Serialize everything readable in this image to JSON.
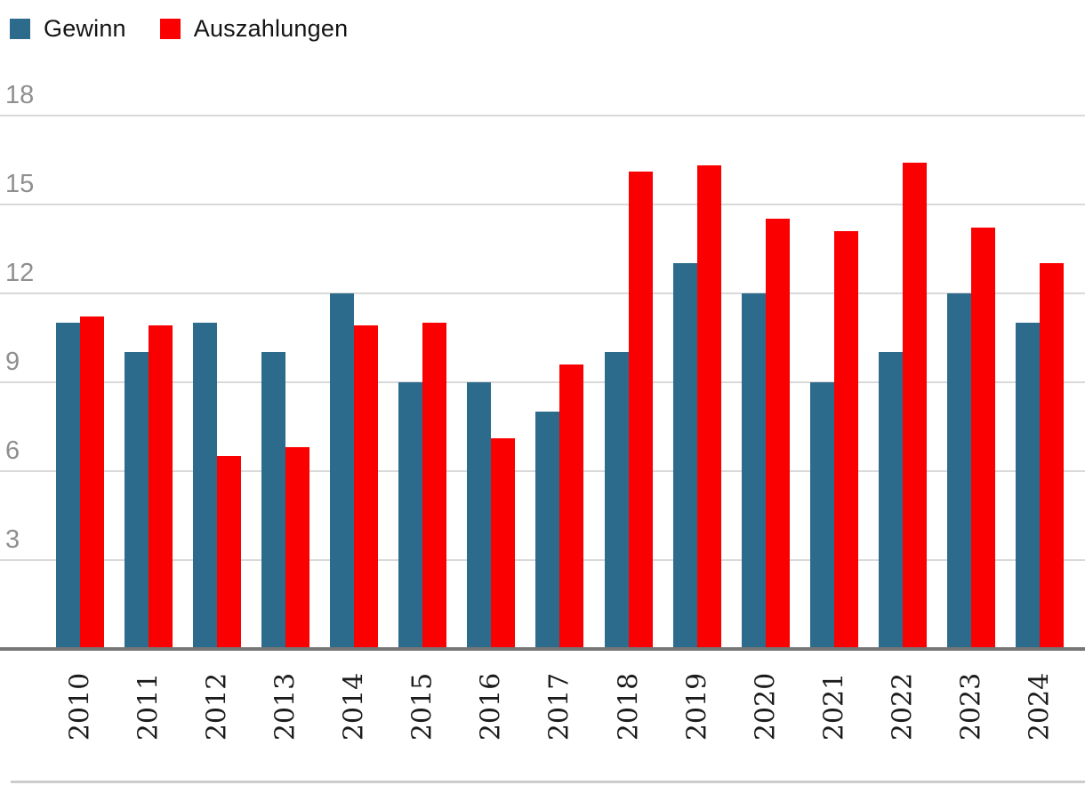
{
  "legend": {
    "items": [
      {
        "label": "Gewinn",
        "color": "#2d6b8c"
      },
      {
        "label": "Auszahlungen",
        "color": "#fa0000"
      }
    ]
  },
  "chart_data": {
    "type": "bar",
    "categories": [
      "2010",
      "2011",
      "2012",
      "2013",
      "2014",
      "2015",
      "2016",
      "2017",
      "2018",
      "2019",
      "2020",
      "2021",
      "2022",
      "2023",
      "2024"
    ],
    "series": [
      {
        "name": "Gewinn",
        "color": "#2d6b8c",
        "values": [
          11.0,
          10.0,
          11.0,
          10.0,
          12.0,
          9.0,
          9.0,
          8.0,
          10.0,
          13.0,
          12.0,
          9.0,
          10.0,
          12.0,
          11.0
        ]
      },
      {
        "name": "Auszahlungen",
        "color": "#fa0000",
        "values": [
          11.2,
          10.9,
          6.5,
          6.8,
          10.9,
          11.0,
          7.1,
          9.6,
          16.1,
          16.3,
          14.5,
          14.1,
          16.4,
          14.2,
          13.0
        ]
      }
    ],
    "title": "",
    "xlabel": "",
    "ylabel": "",
    "ylim": [
      0,
      18
    ],
    "yticks": [
      3,
      6,
      9,
      12,
      15,
      18
    ],
    "grid": true,
    "legend_position": "top-left"
  },
  "colors": {
    "gridline": "#d9d9d9",
    "axis_line": "#767676",
    "ytick_text": "#8f8f8f",
    "xtick_text": "#1c1c1c",
    "bottom_separator": "#cccccc",
    "background": "#ffffff"
  }
}
